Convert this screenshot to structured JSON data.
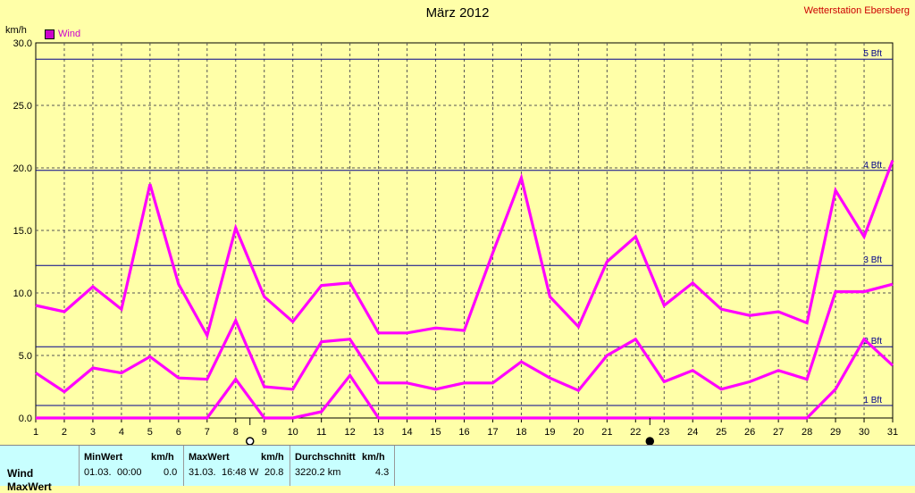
{
  "header": {
    "title": "März 2012",
    "station": "Wetterstation Ebersberg",
    "unit": "km/h",
    "legend_label": "Wind"
  },
  "chart_data": {
    "type": "line",
    "title": "März 2012",
    "ylabel": "km/h",
    "xlabel": "",
    "ylim": [
      0,
      30
    ],
    "xlim": [
      1,
      31
    ],
    "grid": true,
    "legend": "top-left",
    "y_ticks": [
      "0.0",
      "5.0",
      "10.0",
      "15.0",
      "20.0",
      "25.0",
      "30.0"
    ],
    "x": [
      1,
      2,
      3,
      4,
      5,
      6,
      7,
      8,
      9,
      10,
      11,
      12,
      13,
      14,
      15,
      16,
      17,
      18,
      19,
      20,
      21,
      22,
      23,
      24,
      25,
      26,
      27,
      28,
      29,
      30,
      31
    ],
    "series": [
      {
        "name": "Wind",
        "role": "max",
        "color": "#FF00FF",
        "values": [
          9.0,
          8.5,
          10.5,
          8.7,
          18.7,
          10.7,
          6.6,
          15.2,
          9.7,
          7.7,
          10.6,
          10.8,
          6.8,
          6.8,
          7.2,
          7.0,
          13.2,
          19.2,
          9.7,
          7.3,
          12.5,
          14.5,
          9.0,
          10.8,
          8.7,
          8.2,
          8.5,
          7.6,
          18.2,
          14.5,
          20.6
        ]
      },
      {
        "role": "average",
        "color": "#FF00FF",
        "values": [
          3.6,
          2.1,
          4.0,
          3.6,
          4.9,
          3.2,
          3.1,
          7.8,
          2.5,
          2.3,
          6.1,
          6.3,
          2.8,
          2.8,
          2.3,
          2.8,
          2.8,
          4.5,
          3.2,
          2.2,
          5.0,
          6.3,
          2.9,
          3.8,
          2.3,
          2.9,
          3.8,
          3.1,
          10.1,
          10.1,
          10.7
        ]
      },
      {
        "role": "min",
        "color": "#FF00FF",
        "values": [
          0.0,
          0.0,
          0.0,
          0.0,
          0.0,
          0.0,
          0.0,
          3.1,
          0.0,
          0.0,
          0.5,
          3.4,
          0.0,
          0.0,
          0.0,
          0.0,
          0.0,
          0.0,
          0.0,
          0.0,
          0.0,
          0.0,
          0.0,
          0.0,
          0.0,
          0.0,
          0.0,
          0.0,
          2.3,
          6.3,
          4.2
        ]
      }
    ],
    "beaufort_lines": [
      {
        "label": "1 Bft",
        "value": 1.0
      },
      {
        "label": "2 Bft",
        "value": 5.7
      },
      {
        "label": "3 Bft",
        "value": 12.2
      },
      {
        "label": "4 Bft",
        "value": 19.8
      },
      {
        "label": "5 Bft",
        "value": 28.7
      }
    ],
    "moon_phases": [
      {
        "day": 8.5,
        "phase": "full"
      },
      {
        "day": 22.5,
        "phase": "new"
      }
    ]
  },
  "stats": {
    "row_label": "Wind",
    "row_label_2": "MaxWert",
    "min": {
      "header": "MinWert",
      "unit": "km/h",
      "date": "01.03.",
      "time": "00:00",
      "value": "0.0"
    },
    "max": {
      "header": "MaxWert",
      "unit": "km/h",
      "date": "31.03.",
      "time": "16:48",
      "dir": "W",
      "value": "20.8"
    },
    "avg": {
      "header": "Durchschnitt",
      "unit": "km/h",
      "total": "3220.2 km",
      "value": "4.3"
    }
  }
}
